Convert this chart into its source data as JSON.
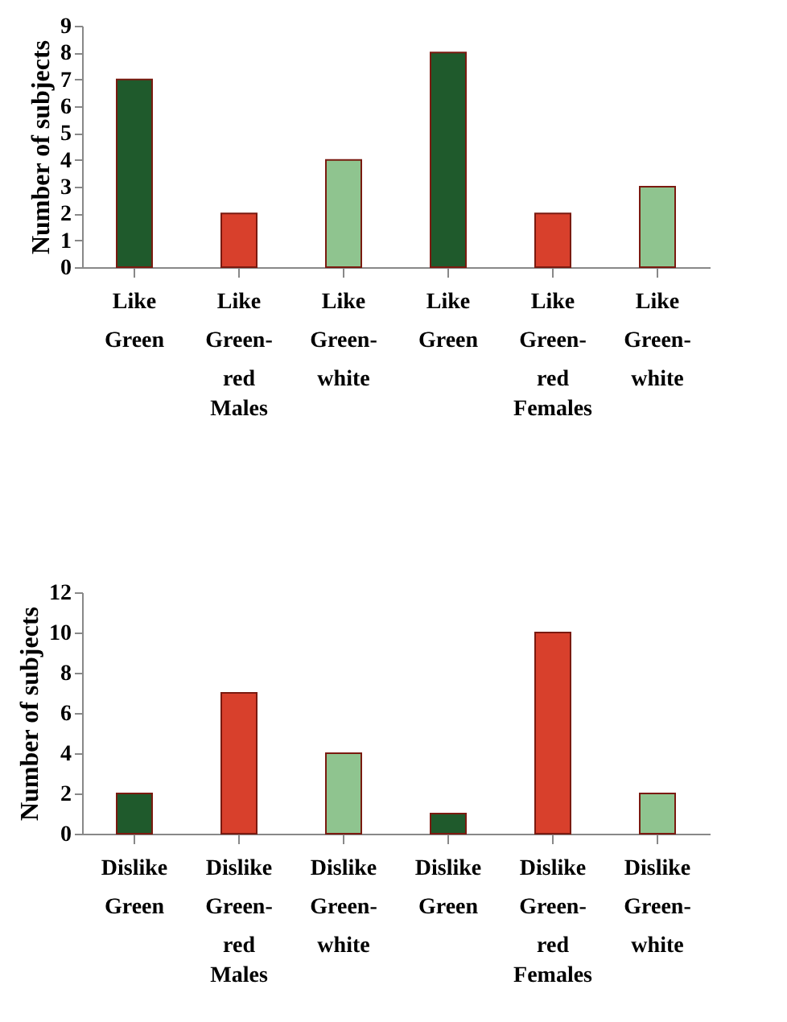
{
  "chart_data": [
    {
      "type": "bar",
      "ylabel": "Number of subjects",
      "categories": [
        "Like Green",
        "Like Green-red",
        "Like Green-white",
        "Like Green",
        "Like Green-red",
        "Like Green-white"
      ],
      "values": [
        7,
        2,
        4,
        8,
        2,
        3
      ],
      "colors": [
        "#1f5a2c",
        "#d8402c",
        "#8fc48f",
        "#1f5a2c",
        "#d8402c",
        "#8fc48f"
      ],
      "ylim": [
        0,
        9
      ],
      "yticks": [
        0,
        1,
        2,
        3,
        4,
        5,
        6,
        7,
        8,
        9
      ],
      "annotations": [
        "Males",
        "Females"
      ]
    },
    {
      "type": "bar",
      "ylabel": "Number of subjects",
      "categories": [
        "Dislike Green",
        "Dislike Green-red",
        "Dislike Green-white",
        "Dislike Green",
        "Dislike Green-red",
        "Dislike Green-white"
      ],
      "values": [
        2,
        7,
        4,
        1,
        10,
        2
      ],
      "colors": [
        "#1f5a2c",
        "#d8402c",
        "#8fc48f",
        "#1f5a2c",
        "#d8402c",
        "#8fc48f"
      ],
      "ylim": [
        0,
        12
      ],
      "yticks": [
        0,
        2,
        4,
        6,
        8,
        10,
        12
      ],
      "annotations": [
        "Males",
        "Females"
      ]
    }
  ]
}
